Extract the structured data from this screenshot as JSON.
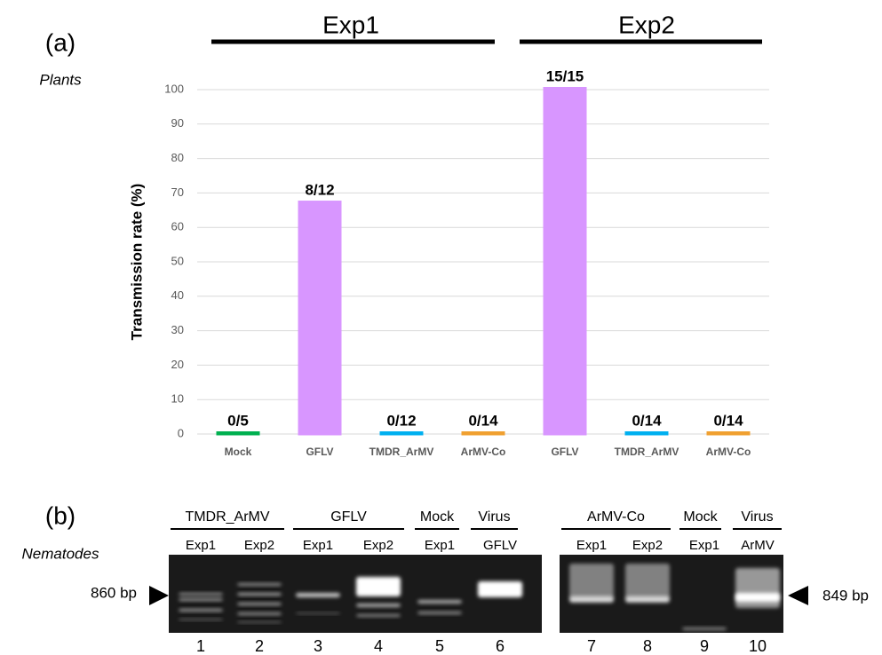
{
  "chart_data": {
    "type": "bar",
    "panel_label": "(a)",
    "subtitle": "Plants",
    "groups": [
      "Exp1",
      "Exp2"
    ],
    "ylabel": "Transmission rate (%)",
    "categories": [
      "Mock",
      "GFLV",
      "TMDR_ArMV",
      "ArMV-Co",
      "GFLV",
      "TMDR_ArMV",
      "ArMV-Co"
    ],
    "values": [
      0,
      67,
      0,
      0,
      100,
      0,
      0
    ],
    "value_labels": [
      "0/5",
      "8/12",
      "0/12",
      "0/14",
      "15/15",
      "0/14",
      "0/14"
    ],
    "colors": [
      "#00b050",
      "#d896ff",
      "#00b0f0",
      "#f0a030",
      "#d896ff",
      "#00b0f0",
      "#f0a030"
    ],
    "ylim": [
      0,
      100
    ],
    "yticks": [
      0,
      10,
      20,
      30,
      40,
      50,
      60,
      70,
      80,
      90,
      100
    ],
    "grid": true
  },
  "panel_b": {
    "label": "(b)",
    "subtitle": "Nematodes",
    "groups": [
      "TMDR_ArMV",
      "GFLV",
      "Mock",
      "Virus",
      "ArMV-Co",
      "Mock",
      "Virus"
    ],
    "samples": [
      "Exp1",
      "Exp2",
      "Exp1",
      "Exp2",
      "Exp1",
      "GFLV",
      "Exp1",
      "Exp2",
      "Exp1",
      "ArMV"
    ],
    "lane_numbers": [
      "1",
      "2",
      "3",
      "4",
      "5",
      "6",
      "7",
      "8",
      "9",
      "10"
    ],
    "marker_left": "860 bp",
    "marker_right": "849 bp"
  }
}
